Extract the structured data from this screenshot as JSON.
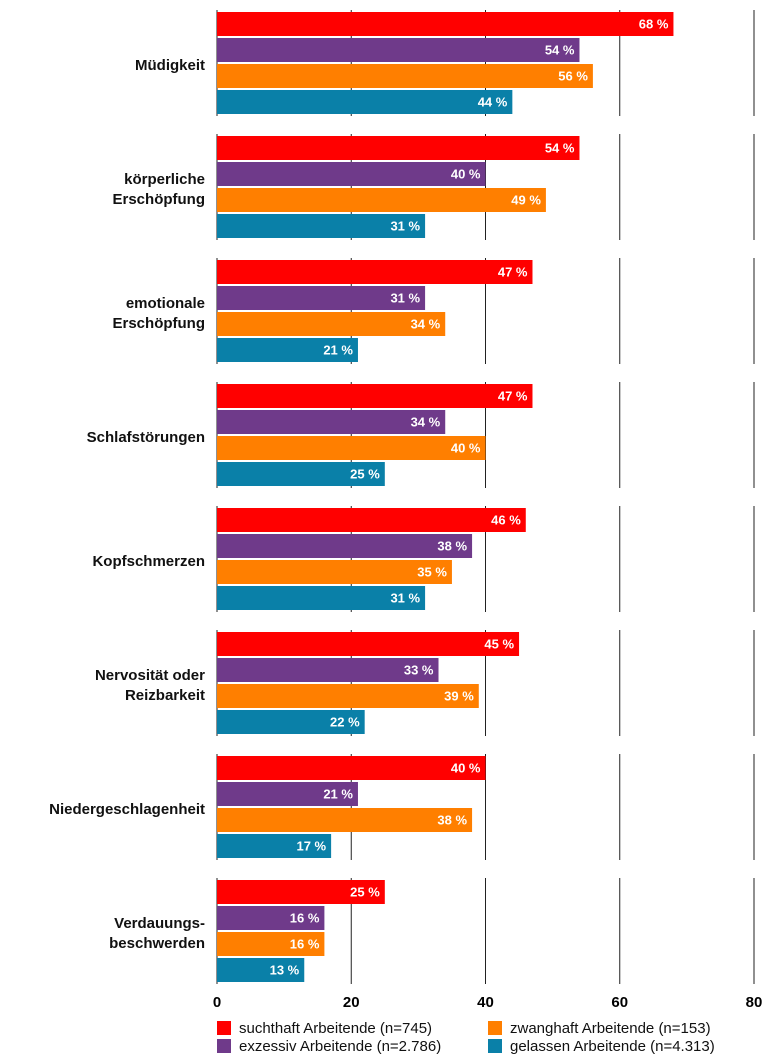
{
  "chart_data": {
    "type": "bar",
    "orientation": "horizontal",
    "categories": [
      [
        "Müdigkeit"
      ],
      [
        "körperliche",
        "Erschöpfung"
      ],
      [
        "emotionale",
        "Erschöpfung"
      ],
      [
        "Schlafstörungen"
      ],
      [
        "Kopfschmerzen"
      ],
      [
        "Nervosität oder",
        "Reizbarkeit"
      ],
      [
        "Niedergeschlagenheit"
      ],
      [
        "Verdauungs-",
        "beschwerden"
      ]
    ],
    "series": [
      {
        "name": "suchthaft Arbeitende (n=745)",
        "color": "#ff0000",
        "values": [
          68,
          54,
          47,
          47,
          46,
          45,
          40,
          25
        ],
        "value_labels": [
          "68 %",
          "54 %",
          "47 %",
          "47 %",
          "46 %",
          "45 %",
          "40 %",
          "25 %"
        ]
      },
      {
        "name": "exzessiv Arbeitende (n=2.786)",
        "color": "#6f3a8a",
        "values": [
          54,
          40,
          31,
          34,
          38,
          33,
          21,
          16
        ],
        "value_labels": [
          "54 %",
          "40 %",
          "31 %",
          "34 %",
          "38 %",
          "33 %",
          "21 %",
          "16 %"
        ]
      },
      {
        "name": "zwanghaft Arbeitende (n=153)",
        "color": "#ff7f00",
        "values": [
          56,
          49,
          34,
          40,
          35,
          39,
          38,
          16
        ],
        "value_labels": [
          "56 %",
          "49 %",
          "34 %",
          "40 %",
          "35 %",
          "39 %",
          "38 %",
          "16 %"
        ]
      },
      {
        "name": "gelassen Arbeitende (n=4.313)",
        "color": "#0a80a8",
        "values": [
          44,
          31,
          21,
          25,
          31,
          22,
          17,
          13
        ],
        "value_labels": [
          "44 %",
          "31 %",
          "21 %",
          "25 %",
          "31 %",
          "22 %",
          "17 %",
          "13 %"
        ]
      }
    ],
    "xlim": [
      0,
      80
    ],
    "xticks": [
      0,
      20,
      40,
      60,
      80
    ],
    "grid": true,
    "legend": "bottom"
  }
}
